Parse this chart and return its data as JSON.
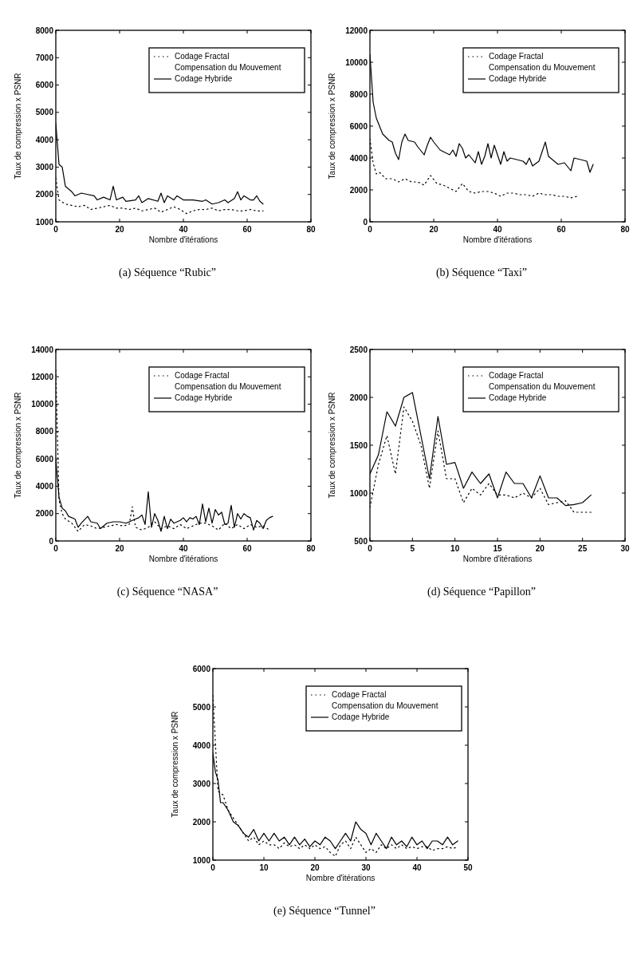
{
  "chart_data": [
    {
      "type": "line",
      "title": "(a) Séquence “Rubic”",
      "xlabel": "Nombre d'itérations",
      "ylabel": "Taux de compression x PSNR",
      "xlim": [
        0,
        80
      ],
      "xticks": [
        0,
        20,
        40,
        60,
        80
      ],
      "ylim": [
        1000,
        8000
      ],
      "yticks": [
        1000,
        2000,
        3000,
        4000,
        5000,
        6000,
        7000,
        8000
      ],
      "legend": "top right",
      "grid": false,
      "marker": "none",
      "series": [
        {
          "name": "Codage Fractal\nCompensation du Mouvement",
          "color": "#000000",
          "line_style": "dotted",
          "x": [
            0,
            1,
            3,
            5,
            7,
            9,
            11,
            13,
            15,
            17,
            19,
            21,
            23,
            25,
            27,
            29,
            31,
            33,
            35,
            37,
            39,
            41,
            43,
            45,
            47,
            49,
            51,
            53,
            55,
            57,
            59,
            61,
            63,
            65
          ],
          "values": [
            2600,
            1800,
            1650,
            1600,
            1550,
            1600,
            1450,
            1500,
            1550,
            1600,
            1500,
            1500,
            1450,
            1500,
            1400,
            1450,
            1500,
            1350,
            1450,
            1550,
            1450,
            1300,
            1400,
            1450,
            1450,
            1500,
            1400,
            1450,
            1450,
            1400,
            1400,
            1450,
            1400,
            1400
          ]
        },
        {
          "name": "Codage Hybride",
          "color": "#000000",
          "line_style": "solid",
          "x": [
            0,
            1,
            2,
            3,
            5,
            6,
            8,
            10,
            12,
            13,
            15,
            17,
            18,
            19,
            21,
            22,
            25,
            26,
            27,
            29,
            32,
            33,
            34,
            35,
            37,
            38,
            40,
            43,
            46,
            47,
            49,
            51,
            53,
            54,
            56,
            57,
            58,
            59,
            61,
            62,
            63,
            64,
            65
          ],
          "values": [
            4600,
            3100,
            3000,
            2300,
            2100,
            1950,
            2050,
            2000,
            1950,
            1800,
            1900,
            1800,
            2300,
            1800,
            1900,
            1750,
            1800,
            1950,
            1700,
            1850,
            1750,
            2050,
            1700,
            1950,
            1800,
            1950,
            1800,
            1800,
            1750,
            1800,
            1650,
            1700,
            1800,
            1700,
            1850,
            2100,
            1800,
            1950,
            1800,
            1800,
            1950,
            1750,
            1650
          ]
        }
      ]
    },
    {
      "type": "line",
      "title": "(b) Séquence “Taxi”",
      "xlabel": "Nombre d'itérations",
      "ylabel": "Taux de compression x PSNR",
      "xlim": [
        0,
        80
      ],
      "xticks": [
        0,
        20,
        40,
        60,
        80
      ],
      "ylim": [
        0,
        12000
      ],
      "yticks": [
        0,
        2000,
        4000,
        6000,
        8000,
        10000,
        12000
      ],
      "legend": "top right",
      "grid": false,
      "marker": "none",
      "series": [
        {
          "name": "Codage Fractal\nCompensation du Mouvement",
          "color": "#000000",
          "line_style": "dotted",
          "x": [
            0,
            1,
            2,
            3,
            5,
            7,
            9,
            11,
            13,
            15,
            17,
            19,
            21,
            23,
            25,
            27,
            29,
            31,
            33,
            35,
            37,
            39,
            41,
            43,
            45,
            47,
            49,
            51,
            53,
            55,
            57,
            59,
            61,
            63,
            65
          ],
          "values": [
            5200,
            3700,
            3000,
            3100,
            2700,
            2700,
            2500,
            2700,
            2500,
            2500,
            2300,
            2900,
            2400,
            2300,
            2100,
            1900,
            2400,
            1900,
            1800,
            1900,
            1900,
            1800,
            1600,
            1800,
            1800,
            1700,
            1700,
            1600,
            1800,
            1700,
            1700,
            1600,
            1600,
            1500,
            1600
          ]
        },
        {
          "name": "Codage Hybride",
          "color": "#000000",
          "line_style": "solid",
          "x": [
            0,
            1,
            2,
            4,
            6,
            7,
            8,
            9,
            10,
            11,
            12,
            14,
            15,
            17,
            18,
            19,
            20,
            22,
            23,
            25,
            26,
            27,
            28,
            29,
            30,
            31,
            33,
            34,
            35,
            36,
            37,
            38,
            39,
            40,
            41,
            42,
            43,
            44,
            46,
            48,
            49,
            50,
            51,
            53,
            55,
            56,
            59,
            61,
            63,
            64,
            66,
            68,
            69,
            70
          ],
          "values": [
            10500,
            7500,
            6500,
            5500,
            5100,
            5000,
            4300,
            3900,
            5000,
            5500,
            5100,
            5000,
            4700,
            4200,
            4800,
            5300,
            5000,
            4500,
            4400,
            4200,
            4500,
            4100,
            4900,
            4600,
            4000,
            4200,
            3700,
            4400,
            3600,
            4100,
            4900,
            4000,
            4800,
            4200,
            3600,
            4400,
            3800,
            4000,
            3900,
            3800,
            3600,
            4000,
            3500,
            3800,
            5000,
            4100,
            3600,
            3700,
            3200,
            4000,
            3900,
            3800,
            3100,
            3600
          ]
        }
      ]
    },
    {
      "type": "line",
      "title": "(c) Séquence “NASA”",
      "xlabel": "Nombre d'itérations",
      "ylabel": "Taux de compression x PSNR",
      "xlim": [
        0,
        80
      ],
      "xticks": [
        0,
        20,
        40,
        60,
        80
      ],
      "ylim": [
        0,
        14000
      ],
      "yticks": [
        0,
        2000,
        4000,
        6000,
        8000,
        10000,
        12000,
        14000
      ],
      "legend": "top right",
      "grid": false,
      "marker": "none",
      "series": [
        {
          "name": "Codage Fractal\nCompensation du Mouvement",
          "color": "#000000",
          "line_style": "dotted",
          "x": [
            0,
            1,
            2,
            3,
            5,
            7,
            9,
            11,
            13,
            15,
            17,
            19,
            21,
            23,
            24,
            25,
            27,
            29,
            31,
            33,
            35,
            37,
            39,
            41,
            43,
            45,
            47,
            49,
            51,
            53,
            55,
            57,
            59,
            61,
            63,
            65,
            67
          ],
          "values": [
            12500,
            3000,
            2000,
            1600,
            1300,
            700,
            1200,
            1100,
            900,
            1000,
            1100,
            1200,
            1100,
            1200,
            2500,
            1000,
            800,
            1000,
            1400,
            900,
            1100,
            900,
            1200,
            900,
            1100,
            1300,
            1300,
            1100,
            800,
            1300,
            900,
            1200,
            900,
            1200,
            1000,
            1100,
            800
          ]
        },
        {
          "name": "Codage Hybride",
          "color": "#000000",
          "line_style": "solid",
          "x": [
            0,
            1,
            2,
            3,
            4,
            6,
            7,
            8,
            10,
            11,
            13,
            14,
            16,
            18,
            20,
            22,
            25,
            26,
            27,
            28,
            29,
            30,
            31,
            32,
            33,
            34,
            35,
            36,
            37,
            38,
            39,
            40,
            41,
            42,
            43,
            44,
            45,
            46,
            47,
            48,
            49,
            50,
            51,
            52,
            53,
            54,
            55,
            56,
            57,
            58,
            59,
            60,
            61,
            62,
            63,
            64,
            65,
            66,
            67,
            68
          ],
          "values": [
            6000,
            3200,
            2400,
            2200,
            1800,
            1600,
            1000,
            1300,
            1800,
            1400,
            1300,
            900,
            1300,
            1400,
            1400,
            1300,
            1600,
            1700,
            1900,
            1200,
            3600,
            1000,
            2000,
            1500,
            700,
            1800,
            900,
            1600,
            1300,
            1400,
            1500,
            1700,
            1400,
            1700,
            1600,
            1800,
            1200,
            2700,
            1400,
            2400,
            1300,
            2300,
            1900,
            2100,
            1200,
            1300,
            2600,
            1000,
            2000,
            1600,
            2000,
            1800,
            1700,
            800,
            1500,
            1300,
            900,
            1500,
            1700,
            1800
          ]
        }
      ]
    },
    {
      "type": "line",
      "title": "(d) Séquence “Papillon”",
      "xlabel": "Nombre d'itérations",
      "ylabel": "Taux de compression x PSNR",
      "xlim": [
        0,
        30
      ],
      "xticks": [
        0,
        5,
        10,
        15,
        20,
        25,
        30
      ],
      "ylim": [
        500,
        2500
      ],
      "yticks": [
        500,
        1000,
        1500,
        2000,
        2500
      ],
      "legend": "top right",
      "grid": false,
      "marker": "none",
      "series": [
        {
          "name": "Codage Fractal\nCompensation du Mouvement",
          "color": "#000000",
          "line_style": "dotted",
          "x": [
            0,
            1,
            2,
            3,
            4,
            5,
            6,
            7,
            8,
            9,
            10,
            11,
            12,
            13,
            14,
            15,
            16,
            17,
            18,
            19,
            20,
            21,
            22,
            23,
            24,
            25,
            26
          ],
          "values": [
            850,
            1300,
            1600,
            1200,
            1900,
            1750,
            1500,
            1050,
            1650,
            1150,
            1150,
            900,
            1050,
            980,
            1100,
            980,
            980,
            950,
            1000,
            950,
            1050,
            880,
            900,
            920,
            800,
            800,
            800
          ]
        },
        {
          "name": "Codage Hybride",
          "color": "#000000",
          "line_style": "solid",
          "x": [
            0,
            1,
            2,
            3,
            4,
            5,
            6,
            7,
            8,
            9,
            10,
            11,
            12,
            13,
            14,
            15,
            16,
            17,
            18,
            19,
            20,
            21,
            22,
            23,
            24,
            25,
            26
          ],
          "values": [
            1200,
            1400,
            1850,
            1700,
            2000,
            2050,
            1600,
            1150,
            1800,
            1300,
            1320,
            1050,
            1220,
            1100,
            1200,
            950,
            1220,
            1100,
            1100,
            950,
            1180,
            950,
            950,
            870,
            880,
            900,
            980
          ]
        }
      ]
    },
    {
      "type": "line",
      "title": "(e) Séquence “Tunnel”",
      "xlabel": "Nombre d'itérations",
      "ylabel": "Taux de compression x PSNR",
      "xlim": [
        0,
        50
      ],
      "xticks": [
        0,
        10,
        20,
        30,
        40,
        50
      ],
      "ylim": [
        1000,
        6000
      ],
      "yticks": [
        1000,
        2000,
        3000,
        4000,
        5000,
        6000
      ],
      "legend": "top right",
      "grid": false,
      "marker": "none",
      "series": [
        {
          "name": "Codage Fractal\nCompensation du Mouvement",
          "color": "#000000",
          "line_style": "dotted",
          "x": [
            0,
            1,
            2,
            3,
            4,
            5,
            6,
            7,
            8,
            9,
            10,
            11,
            12,
            13,
            14,
            15,
            16,
            17,
            18,
            19,
            20,
            21,
            22,
            23,
            24,
            25,
            26,
            27,
            28,
            29,
            30,
            31,
            32,
            33,
            34,
            35,
            36,
            37,
            38,
            39,
            40,
            41,
            42,
            43,
            44,
            45,
            46,
            47,
            48
          ],
          "values": [
            5300,
            2800,
            2700,
            2300,
            2100,
            1900,
            1700,
            1500,
            1600,
            1400,
            1500,
            1400,
            1400,
            1300,
            1450,
            1350,
            1400,
            1300,
            1400,
            1300,
            1400,
            1300,
            1350,
            1200,
            1100,
            1400,
            1500,
            1300,
            1600,
            1400,
            1200,
            1300,
            1200,
            1400,
            1300,
            1400,
            1300,
            1400,
            1300,
            1350,
            1300,
            1350,
            1350,
            1250,
            1300,
            1300,
            1350,
            1300,
            1350
          ]
        },
        {
          "name": "Codage Hybride",
          "color": "#000000",
          "line_style": "solid",
          "x": [
            0,
            0.5,
            1,
            1.5,
            2,
            3,
            4,
            5,
            6,
            7,
            8,
            9,
            10,
            11,
            12,
            13,
            14,
            15,
            16,
            17,
            18,
            19,
            20,
            21,
            22,
            23,
            24,
            25,
            26,
            27,
            28,
            29,
            30,
            31,
            32,
            33,
            34,
            35,
            36,
            37,
            38,
            39,
            40,
            41,
            42,
            43,
            44,
            45,
            46,
            47,
            48
          ],
          "values": [
            3800,
            3300,
            3100,
            2500,
            2500,
            2300,
            2000,
            1900,
            1700,
            1600,
            1800,
            1500,
            1700,
            1500,
            1700,
            1500,
            1600,
            1400,
            1600,
            1400,
            1550,
            1350,
            1500,
            1400,
            1600,
            1500,
            1300,
            1500,
            1700,
            1500,
            2000,
            1800,
            1700,
            1400,
            1700,
            1500,
            1300,
            1600,
            1400,
            1500,
            1350,
            1600,
            1400,
            1500,
            1300,
            1500,
            1500,
            1400,
            1600,
            1400,
            1500
          ]
        }
      ]
    }
  ]
}
